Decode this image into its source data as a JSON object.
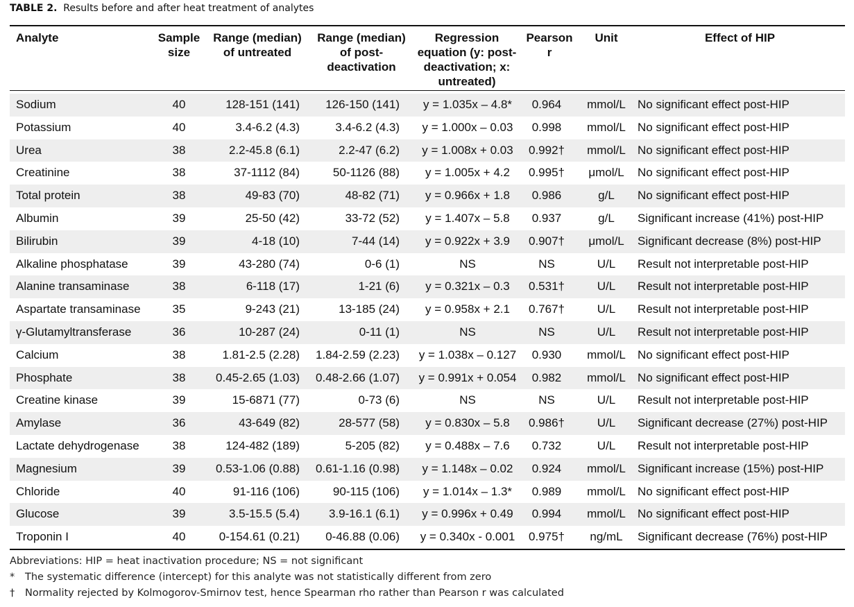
{
  "caption": {
    "label": "TABLE 2.",
    "title": "Results before and after heat treatment of analytes"
  },
  "headers": {
    "analyte": "Analyte",
    "sample_size": "Sample size",
    "range_untreated": "Range (median) of untreated",
    "range_post": "Range (median) of post-deactivation",
    "regression": "Regression equation (y: post-deactivation; x: untreated)",
    "pearson": "Pearson r",
    "unit": "Unit",
    "effect": "Effect of HIP"
  },
  "rows": [
    {
      "analyte": "Sodium",
      "sample_size": "40",
      "range_untreated": "128-151 (141)",
      "range_post": "126-150 (141)",
      "regression": "y = 1.035x – 4.8*",
      "pearson": "0.964",
      "unit": "mmol/L",
      "effect": "No significant effect post-HIP"
    },
    {
      "analyte": "Potassium",
      "sample_size": "40",
      "range_untreated": "3.4-6.2 (4.3)",
      "range_post": "3.4-6.2 (4.3)",
      "regression": "y = 1.000x – 0.03",
      "pearson": "0.998",
      "unit": "mmol/L",
      "effect": "No significant effect post-HIP"
    },
    {
      "analyte": "Urea",
      "sample_size": "38",
      "range_untreated": "2.2-45.8 (6.1)",
      "range_post": "2.2-47 (6.2)",
      "regression": "y = 1.008x + 0.03",
      "pearson": "0.992†",
      "unit": "mmol/L",
      "effect": "No significant effect post-HIP"
    },
    {
      "analyte": "Creatinine",
      "sample_size": "38",
      "range_untreated": "37-1112 (84)",
      "range_post": "50-1126 (88)",
      "regression": "y = 1.005x + 4.2",
      "pearson": "0.995†",
      "unit": "μmol/L",
      "effect": "No significant effect post-HIP"
    },
    {
      "analyte": "Total protein",
      "sample_size": "38",
      "range_untreated": "49-83 (70)",
      "range_post": "48-82 (71)",
      "regression": "y = 0.966x + 1.8",
      "pearson": "0.986",
      "unit": "g/L",
      "effect": "No significant effect post-HIP"
    },
    {
      "analyte": "Albumin",
      "sample_size": "39",
      "range_untreated": "25-50 (42)",
      "range_post": "33-72 (52)",
      "regression": "y = 1.407x – 5.8",
      "pearson": "0.937",
      "unit": "g/L",
      "effect": "Significant increase (41%) post-HIP"
    },
    {
      "analyte": "Bilirubin",
      "sample_size": "39",
      "range_untreated": "4-18 (10)",
      "range_post": "7-44 (14)",
      "regression": "y = 0.922x + 3.9",
      "pearson": "0.907†",
      "unit": "μmol/L",
      "effect": "Significant decrease (8%) post-HIP"
    },
    {
      "analyte": "Alkaline phosphatase",
      "sample_size": "39",
      "range_untreated": "43-280 (74)",
      "range_post": "0-6 (1)",
      "regression": "NS",
      "pearson": "NS",
      "unit": "U/L",
      "effect": "Result not interpretable post-HIP"
    },
    {
      "analyte": "Alanine transaminase",
      "sample_size": "38",
      "range_untreated": "6-118 (17)",
      "range_post": "1-21 (6)",
      "regression": "y = 0.321x – 0.3",
      "pearson": "0.531†",
      "unit": "U/L",
      "effect": "Result not interpretable post-HIP"
    },
    {
      "analyte": "Aspartate transaminase",
      "sample_size": "35",
      "range_untreated": "9-243 (21)",
      "range_post": "13-185 (24)",
      "regression": "y = 0.958x + 2.1",
      "pearson": "0.767†",
      "unit": "U/L",
      "effect": "Result not interpretable post-HIP"
    },
    {
      "analyte": "γ-Glutamyltransferase",
      "sample_size": "36",
      "range_untreated": "10-287 (24)",
      "range_post": "0-11 (1)",
      "regression": "NS",
      "pearson": "NS",
      "unit": "U/L",
      "effect": "Result not interpretable post-HIP"
    },
    {
      "analyte": "Calcium",
      "sample_size": "38",
      "range_untreated": "1.81-2.5 (2.28)",
      "range_post": "1.84-2.59 (2.23)",
      "regression": "y = 1.038x – 0.127",
      "pearson": "0.930",
      "unit": "mmol/L",
      "effect": "No significant effect post-HIP"
    },
    {
      "analyte": "Phosphate",
      "sample_size": "38",
      "range_untreated": "0.45-2.65 (1.03)",
      "range_post": "0.48-2.66 (1.07)",
      "regression": "y = 0.991x + 0.054",
      "pearson": "0.982",
      "unit": "mmol/L",
      "effect": "No significant effect post-HIP"
    },
    {
      "analyte": "Creatine kinase",
      "sample_size": "39",
      "range_untreated": "15-6871 (77)",
      "range_post": "0-73 (6)",
      "regression": "NS",
      "pearson": "NS",
      "unit": "U/L",
      "effect": "Result not interpretable post-HIP"
    },
    {
      "analyte": "Amylase",
      "sample_size": "36",
      "range_untreated": "43-649 (82)",
      "range_post": "28-577 (58)",
      "regression": "y = 0.830x – 5.8",
      "pearson": "0.986†",
      "unit": "U/L",
      "effect": "Significant decrease (27%) post-HIP"
    },
    {
      "analyte": "Lactate dehydrogenase",
      "sample_size": "38",
      "range_untreated": "124-482 (189)",
      "range_post": "5-205 (82)",
      "regression": "y = 0.488x – 7.6",
      "pearson": "0.732",
      "unit": "U/L",
      "effect": "Result not interpretable post-HIP"
    },
    {
      "analyte": "Magnesium",
      "sample_size": "39",
      "range_untreated": "0.53-1.06 (0.88)",
      "range_post": "0.61-1.16 (0.98)",
      "regression": "y = 1.148x – 0.02",
      "pearson": "0.924",
      "unit": "mmol/L",
      "effect": "Significant increase (15%) post-HIP"
    },
    {
      "analyte": "Chloride",
      "sample_size": "40",
      "range_untreated": "91-116 (106)",
      "range_post": "90-115 (106)",
      "regression": "y = 1.014x – 1.3*",
      "pearson": "0.989",
      "unit": "mmol/L",
      "effect": "No significant effect post-HIP"
    },
    {
      "analyte": "Glucose",
      "sample_size": "39",
      "range_untreated": "3.5-15.5 (5.4)",
      "range_post": "3.9-16.1 (6.1)",
      "regression": "y = 0.996x + 0.49",
      "pearson": "0.994",
      "unit": "mmol/L",
      "effect": "No significant effect post-HIP"
    },
    {
      "analyte": "Troponin I",
      "sample_size": "40",
      "range_untreated": "0-154.61 (0.21)",
      "range_post": "0-46.88 (0.06)",
      "regression": "y = 0.340x - 0.001",
      "pearson": "0.975†",
      "unit": "ng/mL",
      "effect": "Significant decrease (76%) post-HIP"
    }
  ],
  "footnotes": {
    "abbreviations": "Abbreviations: HIP = heat inactivation procedure; NS = not significant",
    "star_mark": "*",
    "star_text": "The systematic difference (intercept) for this analyte was not statistically different from zero",
    "dagger_mark": "†",
    "dagger_text": "Normality rejected by Kolmogorov-Smirnov test, hence Spearman rho rather than Pearson r was calculated"
  }
}
